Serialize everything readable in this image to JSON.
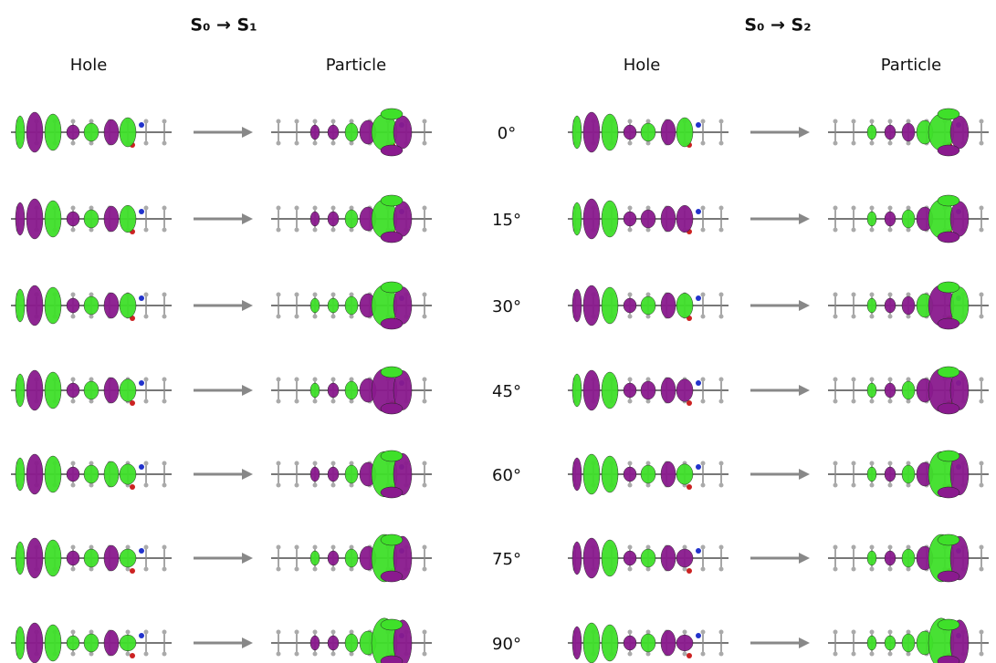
{
  "panels": [
    {
      "title": "S₀ → S₁",
      "hole": "Hole",
      "particle": "Particle"
    },
    {
      "title": "S₀ → S₂",
      "hole": "Hole",
      "particle": "Particle"
    }
  ],
  "angles": [
    "0°",
    "15°",
    "30°",
    "45°",
    "60°",
    "75°",
    "90°"
  ]
}
